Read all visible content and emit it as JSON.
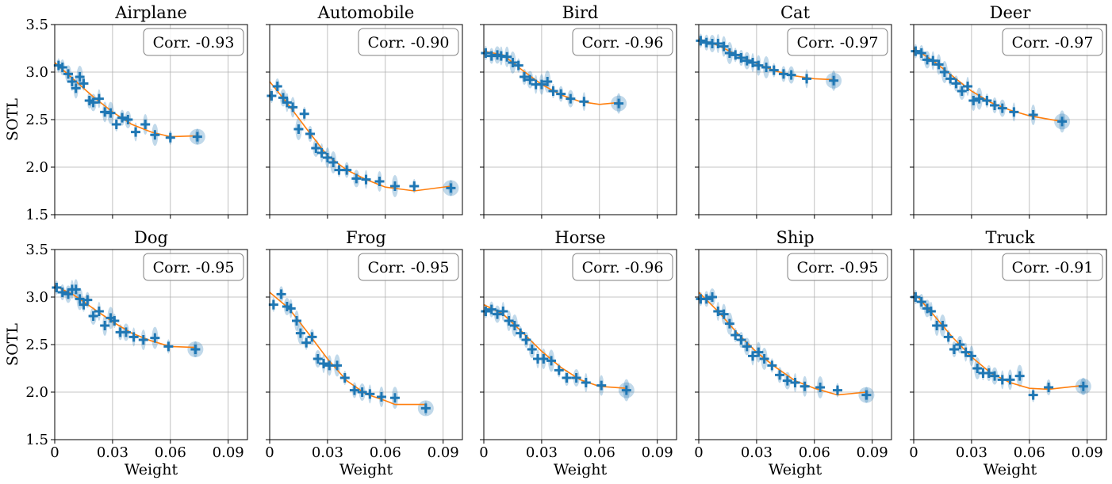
{
  "colors": {
    "marker": "#1f77b4",
    "ellipse": "#1f77b4",
    "fit": "#ff7f0e",
    "grid": "#b0b0b0",
    "box_edge": "#808080"
  },
  "chart_data": {
    "type": "scatter",
    "xlabel": "Weight",
    "ylabel": "SOTL",
    "xlim": [
      0,
      0.1
    ],
    "ylim": [
      1.5,
      3.5
    ],
    "x_ticks": [
      0,
      0.03,
      0.06,
      0.09
    ],
    "x_tick_labels": [
      "0",
      "0.03",
      "0.06",
      "0.09"
    ],
    "y_ticks": [
      1.5,
      2.0,
      2.5,
      3.0,
      3.5
    ],
    "y_tick_labels": [
      "1.5",
      "2.0",
      "2.5",
      "3.0",
      "3.5"
    ],
    "grid": true,
    "legend_location": "top-right",
    "panels": [
      {
        "title": "Airplane",
        "corr_label": "Corr. -0.93",
        "points": [
          [
            0.002,
            3.07
          ],
          [
            0.004,
            3.05
          ],
          [
            0.007,
            2.98
          ],
          [
            0.009,
            2.9
          ],
          [
            0.011,
            2.83
          ],
          [
            0.013,
            2.95
          ],
          [
            0.015,
            2.88
          ],
          [
            0.018,
            2.7
          ],
          [
            0.02,
            2.68
          ],
          [
            0.023,
            2.72
          ],
          [
            0.026,
            2.58
          ],
          [
            0.029,
            2.57
          ],
          [
            0.032,
            2.45
          ],
          [
            0.035,
            2.52
          ],
          [
            0.038,
            2.5
          ],
          [
            0.042,
            2.37
          ],
          [
            0.047,
            2.45
          ],
          [
            0.052,
            2.34
          ],
          [
            0.06,
            2.31
          ],
          [
            0.074,
            2.32
          ]
        ],
        "fit": [
          [
            0.0,
            3.1
          ],
          [
            0.01,
            2.92
          ],
          [
            0.02,
            2.74
          ],
          [
            0.03,
            2.58
          ],
          [
            0.04,
            2.45
          ],
          [
            0.05,
            2.37
          ],
          [
            0.06,
            2.32
          ],
          [
            0.074,
            2.33
          ]
        ]
      },
      {
        "title": "Automobile",
        "corr_label": "Corr. -0.90",
        "points": [
          [
            0.001,
            2.75
          ],
          [
            0.004,
            2.85
          ],
          [
            0.007,
            2.73
          ],
          [
            0.009,
            2.68
          ],
          [
            0.012,
            2.63
          ],
          [
            0.015,
            2.4
          ],
          [
            0.018,
            2.56
          ],
          [
            0.021,
            2.35
          ],
          [
            0.024,
            2.2
          ],
          [
            0.027,
            2.15
          ],
          [
            0.03,
            2.1
          ],
          [
            0.033,
            2.05
          ],
          [
            0.036,
            1.97
          ],
          [
            0.04,
            1.97
          ],
          [
            0.045,
            1.88
          ],
          [
            0.05,
            1.87
          ],
          [
            0.057,
            1.85
          ],
          [
            0.065,
            1.8
          ],
          [
            0.075,
            1.8
          ],
          [
            0.094,
            1.78
          ]
        ],
        "fit": [
          [
            0.0,
            2.9
          ],
          [
            0.01,
            2.65
          ],
          [
            0.02,
            2.38
          ],
          [
            0.03,
            2.12
          ],
          [
            0.04,
            1.97
          ],
          [
            0.05,
            1.87
          ],
          [
            0.06,
            1.79
          ],
          [
            0.075,
            1.75
          ],
          [
            0.094,
            1.8
          ]
        ]
      },
      {
        "title": "Bird",
        "corr_label": "Corr. -0.96",
        "points": [
          [
            0.001,
            3.2
          ],
          [
            0.004,
            3.17
          ],
          [
            0.007,
            3.18
          ],
          [
            0.009,
            3.17
          ],
          [
            0.012,
            3.16
          ],
          [
            0.015,
            3.1
          ],
          [
            0.018,
            3.07
          ],
          [
            0.021,
            2.95
          ],
          [
            0.024,
            2.92
          ],
          [
            0.027,
            2.87
          ],
          [
            0.03,
            2.87
          ],
          [
            0.033,
            2.9
          ],
          [
            0.036,
            2.8
          ],
          [
            0.04,
            2.77
          ],
          [
            0.045,
            2.72
          ],
          [
            0.052,
            2.69
          ],
          [
            0.07,
            2.67
          ]
        ],
        "fit": [
          [
            0.0,
            3.22
          ],
          [
            0.01,
            3.18
          ],
          [
            0.02,
            3.02
          ],
          [
            0.03,
            2.87
          ],
          [
            0.04,
            2.76
          ],
          [
            0.05,
            2.69
          ],
          [
            0.06,
            2.66
          ],
          [
            0.07,
            2.68
          ]
        ]
      },
      {
        "title": "Cat",
        "corr_label": "Corr. -0.97",
        "points": [
          [
            0.001,
            3.33
          ],
          [
            0.004,
            3.31
          ],
          [
            0.007,
            3.3
          ],
          [
            0.01,
            3.3
          ],
          [
            0.013,
            3.27
          ],
          [
            0.016,
            3.2
          ],
          [
            0.019,
            3.18
          ],
          [
            0.022,
            3.15
          ],
          [
            0.025,
            3.12
          ],
          [
            0.028,
            3.1
          ],
          [
            0.031,
            3.07
          ],
          [
            0.035,
            3.05
          ],
          [
            0.039,
            3.02
          ],
          [
            0.044,
            2.98
          ],
          [
            0.048,
            2.97
          ],
          [
            0.056,
            2.93
          ],
          [
            0.07,
            2.91
          ]
        ],
        "fit": [
          [
            0.0,
            3.35
          ],
          [
            0.01,
            3.28
          ],
          [
            0.02,
            3.18
          ],
          [
            0.03,
            3.09
          ],
          [
            0.04,
            3.01
          ],
          [
            0.05,
            2.96
          ],
          [
            0.06,
            2.93
          ],
          [
            0.07,
            2.92
          ]
        ]
      },
      {
        "title": "Deer",
        "corr_label": "Corr. -0.97",
        "points": [
          [
            0.001,
            3.22
          ],
          [
            0.004,
            3.2
          ],
          [
            0.007,
            3.13
          ],
          [
            0.01,
            3.12
          ],
          [
            0.013,
            3.08
          ],
          [
            0.016,
            3.0
          ],
          [
            0.019,
            2.93
          ],
          [
            0.022,
            2.88
          ],
          [
            0.025,
            2.8
          ],
          [
            0.028,
            2.85
          ],
          [
            0.031,
            2.7
          ],
          [
            0.034,
            2.72
          ],
          [
            0.038,
            2.7
          ],
          [
            0.042,
            2.65
          ],
          [
            0.046,
            2.62
          ],
          [
            0.052,
            2.58
          ],
          [
            0.062,
            2.55
          ],
          [
            0.077,
            2.48
          ]
        ],
        "fit": [
          [
            0.0,
            3.25
          ],
          [
            0.01,
            3.12
          ],
          [
            0.02,
            2.96
          ],
          [
            0.03,
            2.8
          ],
          [
            0.04,
            2.68
          ],
          [
            0.05,
            2.6
          ],
          [
            0.06,
            2.54
          ],
          [
            0.077,
            2.48
          ]
        ]
      },
      {
        "title": "Dog",
        "corr_label": "Corr. -0.95",
        "points": [
          [
            0.001,
            3.1
          ],
          [
            0.004,
            3.05
          ],
          [
            0.007,
            3.03
          ],
          [
            0.009,
            3.08
          ],
          [
            0.011,
            3.08
          ],
          [
            0.013,
            2.98
          ],
          [
            0.015,
            2.92
          ],
          [
            0.017,
            2.97
          ],
          [
            0.02,
            2.8
          ],
          [
            0.023,
            2.85
          ],
          [
            0.026,
            2.7
          ],
          [
            0.029,
            2.78
          ],
          [
            0.031,
            2.75
          ],
          [
            0.034,
            2.63
          ],
          [
            0.037,
            2.63
          ],
          [
            0.041,
            2.58
          ],
          [
            0.046,
            2.55
          ],
          [
            0.052,
            2.57
          ],
          [
            0.059,
            2.48
          ],
          [
            0.073,
            2.45
          ]
        ],
        "fit": [
          [
            0.0,
            3.12
          ],
          [
            0.01,
            3.02
          ],
          [
            0.02,
            2.88
          ],
          [
            0.03,
            2.74
          ],
          [
            0.04,
            2.62
          ],
          [
            0.05,
            2.54
          ],
          [
            0.06,
            2.48
          ],
          [
            0.073,
            2.47
          ]
        ]
      },
      {
        "title": "Frog",
        "corr_label": "Corr. -0.95",
        "points": [
          [
            0.002,
            2.92
          ],
          [
            0.006,
            3.03
          ],
          [
            0.009,
            2.9
          ],
          [
            0.011,
            2.88
          ],
          [
            0.014,
            2.75
          ],
          [
            0.016,
            2.62
          ],
          [
            0.019,
            2.52
          ],
          [
            0.022,
            2.58
          ],
          [
            0.025,
            2.35
          ],
          [
            0.028,
            2.3
          ],
          [
            0.031,
            2.28
          ],
          [
            0.035,
            2.28
          ],
          [
            0.039,
            2.15
          ],
          [
            0.044,
            2.02
          ],
          [
            0.048,
            2.0
          ],
          [
            0.052,
            1.98
          ],
          [
            0.058,
            1.95
          ],
          [
            0.065,
            1.94
          ],
          [
            0.081,
            1.83
          ]
        ],
        "fit": [
          [
            0.0,
            3.05
          ],
          [
            0.01,
            2.88
          ],
          [
            0.02,
            2.62
          ],
          [
            0.03,
            2.35
          ],
          [
            0.04,
            2.12
          ],
          [
            0.05,
            1.98
          ],
          [
            0.06,
            1.91
          ],
          [
            0.065,
            1.87
          ],
          [
            0.081,
            1.87
          ]
        ]
      },
      {
        "title": "Horse",
        "corr_label": "Corr. -0.96",
        "points": [
          [
            0.001,
            2.85
          ],
          [
            0.004,
            2.87
          ],
          [
            0.007,
            2.82
          ],
          [
            0.01,
            2.85
          ],
          [
            0.013,
            2.75
          ],
          [
            0.016,
            2.7
          ],
          [
            0.019,
            2.62
          ],
          [
            0.022,
            2.55
          ],
          [
            0.025,
            2.45
          ],
          [
            0.028,
            2.35
          ],
          [
            0.031,
            2.35
          ],
          [
            0.035,
            2.33
          ],
          [
            0.039,
            2.23
          ],
          [
            0.043,
            2.15
          ],
          [
            0.048,
            2.15
          ],
          [
            0.053,
            2.1
          ],
          [
            0.061,
            2.07
          ],
          [
            0.074,
            2.02
          ]
        ],
        "fit": [
          [
            0.0,
            2.92
          ],
          [
            0.01,
            2.82
          ],
          [
            0.02,
            2.63
          ],
          [
            0.03,
            2.43
          ],
          [
            0.04,
            2.26
          ],
          [
            0.05,
            2.13
          ],
          [
            0.06,
            2.06
          ],
          [
            0.074,
            2.04
          ]
        ]
      },
      {
        "title": "Ship",
        "corr_label": "Corr. -0.95",
        "points": [
          [
            0.001,
            2.98
          ],
          [
            0.004,
            2.98
          ],
          [
            0.007,
            3.0
          ],
          [
            0.01,
            2.85
          ],
          [
            0.013,
            2.82
          ],
          [
            0.016,
            2.72
          ],
          [
            0.019,
            2.6
          ],
          [
            0.022,
            2.55
          ],
          [
            0.025,
            2.48
          ],
          [
            0.028,
            2.38
          ],
          [
            0.031,
            2.42
          ],
          [
            0.034,
            2.35
          ],
          [
            0.038,
            2.28
          ],
          [
            0.042,
            2.18
          ],
          [
            0.046,
            2.12
          ],
          [
            0.05,
            2.1
          ],
          [
            0.055,
            2.06
          ],
          [
            0.063,
            2.05
          ],
          [
            0.072,
            2.02
          ],
          [
            0.087,
            1.97
          ]
        ],
        "fit": [
          [
            0.0,
            3.05
          ],
          [
            0.01,
            2.85
          ],
          [
            0.02,
            2.62
          ],
          [
            0.03,
            2.42
          ],
          [
            0.04,
            2.26
          ],
          [
            0.05,
            2.12
          ],
          [
            0.06,
            2.04
          ],
          [
            0.072,
            1.97
          ],
          [
            0.087,
            2.0
          ]
        ]
      },
      {
        "title": "Truck",
        "corr_label": "Corr. -0.91",
        "points": [
          [
            0.001,
            3.0
          ],
          [
            0.004,
            2.95
          ],
          [
            0.007,
            2.88
          ],
          [
            0.009,
            2.85
          ],
          [
            0.012,
            2.7
          ],
          [
            0.015,
            2.7
          ],
          [
            0.018,
            2.58
          ],
          [
            0.021,
            2.45
          ],
          [
            0.024,
            2.5
          ],
          [
            0.027,
            2.42
          ],
          [
            0.03,
            2.38
          ],
          [
            0.033,
            2.25
          ],
          [
            0.036,
            2.2
          ],
          [
            0.039,
            2.2
          ],
          [
            0.042,
            2.17
          ],
          [
            0.046,
            2.13
          ],
          [
            0.05,
            2.13
          ],
          [
            0.055,
            2.17
          ],
          [
            0.062,
            1.97
          ],
          [
            0.07,
            2.05
          ],
          [
            0.088,
            2.06
          ]
        ],
        "fit": [
          [
            0.0,
            3.05
          ],
          [
            0.01,
            2.82
          ],
          [
            0.02,
            2.58
          ],
          [
            0.03,
            2.37
          ],
          [
            0.04,
            2.2
          ],
          [
            0.05,
            2.1
          ],
          [
            0.06,
            2.04
          ],
          [
            0.07,
            2.03
          ],
          [
            0.088,
            2.07
          ]
        ]
      }
    ]
  }
}
